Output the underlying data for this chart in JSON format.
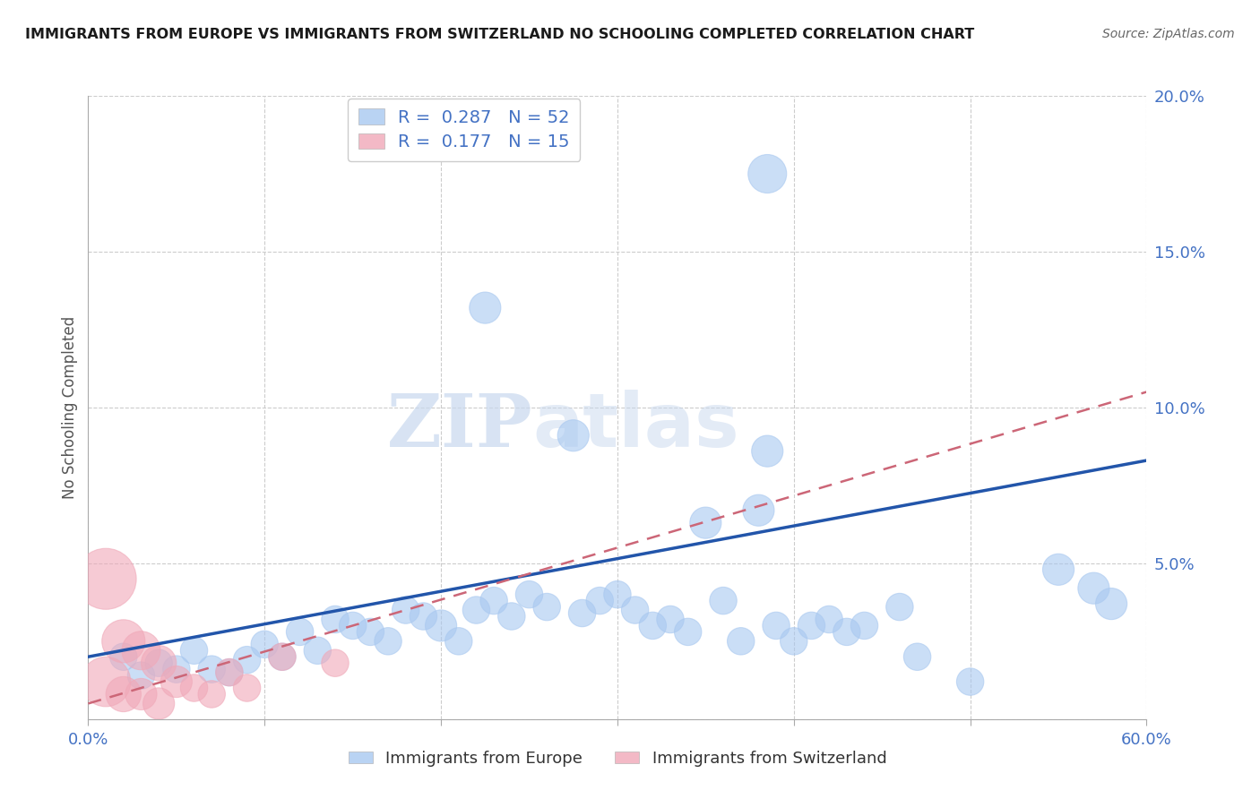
{
  "title": "IMMIGRANTS FROM EUROPE VS IMMIGRANTS FROM SWITZERLAND NO SCHOOLING COMPLETED CORRELATION CHART",
  "source": "Source: ZipAtlas.com",
  "ylabel": "No Schooling Completed",
  "xlim": [
    0.0,
    0.6
  ],
  "ylim": [
    0.0,
    0.2
  ],
  "xticks": [
    0.0,
    0.1,
    0.2,
    0.3,
    0.4,
    0.5,
    0.6
  ],
  "yticks_right": [
    0.0,
    0.05,
    0.1,
    0.15,
    0.2
  ],
  "ytick_labels_right": [
    "",
    "5.0%",
    "10.0%",
    "15.0%",
    "20.0%"
  ],
  "xtick_labels": [
    "0.0%",
    "",
    "",
    "",
    "",
    "",
    "60.0%"
  ],
  "legend_blue_r": "0.287",
  "legend_blue_n": "52",
  "legend_pink_r": "0.177",
  "legend_pink_n": "15",
  "legend_label_blue": "Immigrants from Europe",
  "legend_label_pink": "Immigrants from Switzerland",
  "blue_color": "#a8c8f0",
  "pink_color": "#f0a8b8",
  "line_blue_color": "#2255aa",
  "line_pink_color": "#cc6677",
  "watermark_zip": "ZIP",
  "watermark_atlas": "atlas",
  "blue_scatter_x": [
    0.385,
    0.225,
    0.275,
    0.385,
    0.38,
    0.02,
    0.03,
    0.04,
    0.05,
    0.06,
    0.07,
    0.08,
    0.09,
    0.1,
    0.11,
    0.12,
    0.13,
    0.14,
    0.15,
    0.16,
    0.17,
    0.18,
    0.19,
    0.2,
    0.21,
    0.22,
    0.23,
    0.24,
    0.25,
    0.26,
    0.28,
    0.29,
    0.3,
    0.31,
    0.32,
    0.33,
    0.34,
    0.35,
    0.36,
    0.37,
    0.39,
    0.4,
    0.41,
    0.42,
    0.43,
    0.44,
    0.46,
    0.47,
    0.5,
    0.55,
    0.57,
    0.58
  ],
  "blue_scatter_y": [
    0.175,
    0.132,
    0.091,
    0.086,
    0.067,
    0.02,
    0.014,
    0.018,
    0.016,
    0.022,
    0.016,
    0.015,
    0.019,
    0.024,
    0.02,
    0.028,
    0.022,
    0.032,
    0.03,
    0.028,
    0.025,
    0.035,
    0.033,
    0.03,
    0.025,
    0.035,
    0.038,
    0.033,
    0.04,
    0.036,
    0.034,
    0.038,
    0.04,
    0.035,
    0.03,
    0.032,
    0.028,
    0.063,
    0.038,
    0.025,
    0.03,
    0.025,
    0.03,
    0.032,
    0.028,
    0.03,
    0.036,
    0.02,
    0.012,
    0.048,
    0.042,
    0.037
  ],
  "blue_scatter_size": [
    120,
    80,
    80,
    80,
    80,
    60,
    60,
    60,
    60,
    60,
    60,
    60,
    60,
    60,
    60,
    60,
    60,
    60,
    60,
    60,
    60,
    60,
    60,
    80,
    60,
    60,
    60,
    60,
    60,
    60,
    60,
    60,
    60,
    60,
    60,
    60,
    60,
    80,
    60,
    60,
    60,
    60,
    60,
    60,
    60,
    60,
    60,
    60,
    60,
    80,
    80,
    80
  ],
  "pink_scatter_x": [
    0.01,
    0.01,
    0.02,
    0.02,
    0.03,
    0.03,
    0.04,
    0.04,
    0.05,
    0.06,
    0.07,
    0.08,
    0.09,
    0.11,
    0.14
  ],
  "pink_scatter_y": [
    0.045,
    0.012,
    0.025,
    0.008,
    0.022,
    0.008,
    0.018,
    0.005,
    0.012,
    0.01,
    0.008,
    0.015,
    0.01,
    0.02,
    0.018
  ],
  "pink_scatter_size": [
    300,
    200,
    150,
    100,
    120,
    80,
    100,
    80,
    80,
    60,
    60,
    60,
    60,
    60,
    60
  ],
  "blue_line_x0": 0.0,
  "blue_line_x1": 0.6,
  "blue_line_y0": 0.02,
  "blue_line_y1": 0.083,
  "pink_line_x0": 0.0,
  "pink_line_x1": 0.6,
  "pink_line_y0": 0.005,
  "pink_line_y1": 0.105
}
